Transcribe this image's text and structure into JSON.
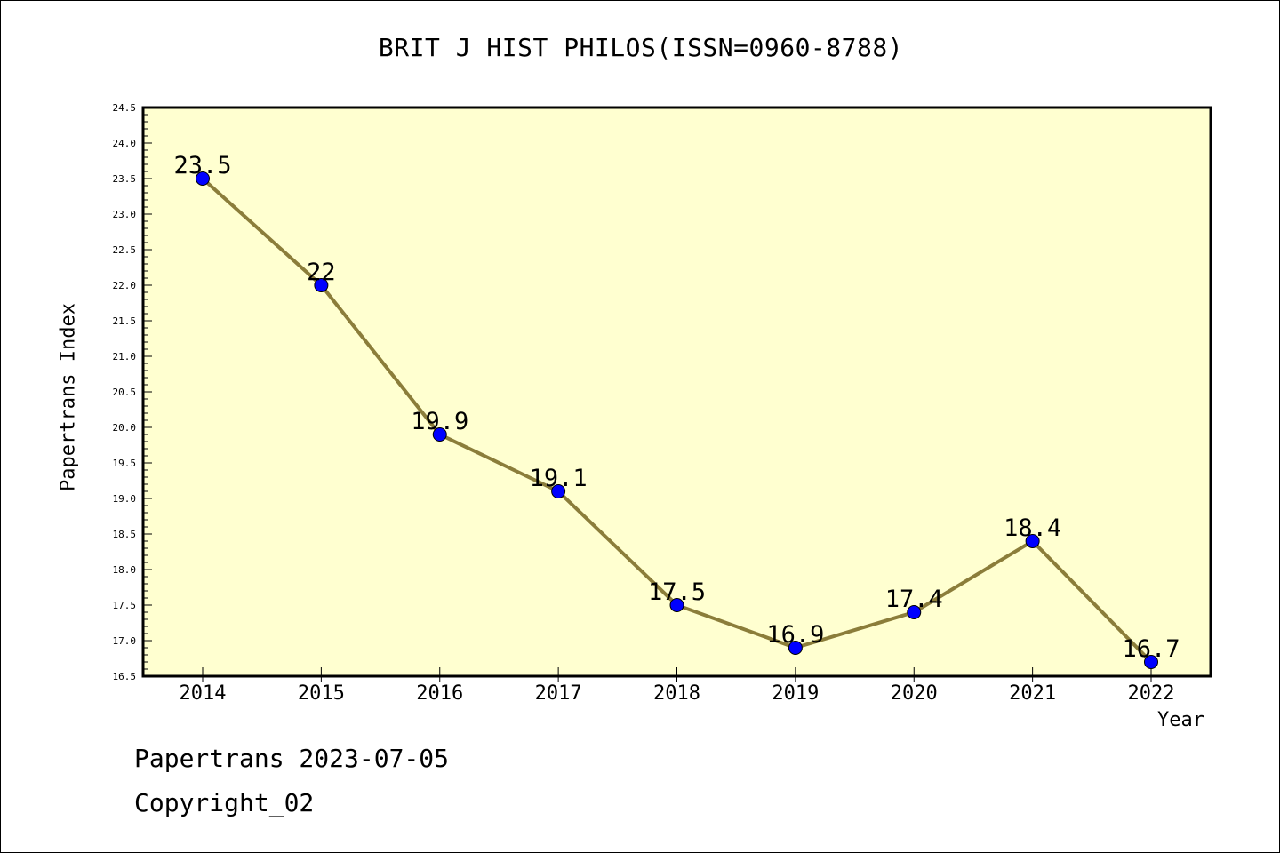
{
  "chart_data": {
    "type": "line",
    "title": "BRIT J HIST PHILOS(ISSN=0960-8788)",
    "xlabel": "Year",
    "ylabel": "Papertrans Index",
    "categories": [
      "2014",
      "2015",
      "2016",
      "2017",
      "2018",
      "2019",
      "2020",
      "2021",
      "2022"
    ],
    "values": [
      23.5,
      22.0,
      19.9,
      19.1,
      17.5,
      16.9,
      17.4,
      18.4,
      16.7
    ],
    "value_labels": [
      "23.5",
      "22",
      "19.9",
      "19.1",
      "17.5",
      "16.9",
      "17.4",
      "18.4",
      "16.7"
    ],
    "ylim": [
      16.5,
      24.5
    ],
    "yticks": [
      "16.5",
      "17.0",
      "17.5",
      "18.0",
      "18.5",
      "19.0",
      "19.5",
      "20.0",
      "20.5",
      "21.0",
      "21.5",
      "22.0",
      "22.5",
      "23.0",
      "23.5",
      "24.0",
      "24.5"
    ],
    "grid": false,
    "legend": "none",
    "colors": {
      "plot_background": "#ffffd0",
      "line": "#8b7d3a",
      "marker": "#0000ff"
    }
  },
  "footer": {
    "line1": "Papertrans 2023-07-05",
    "line2": "Copyright_02"
  }
}
